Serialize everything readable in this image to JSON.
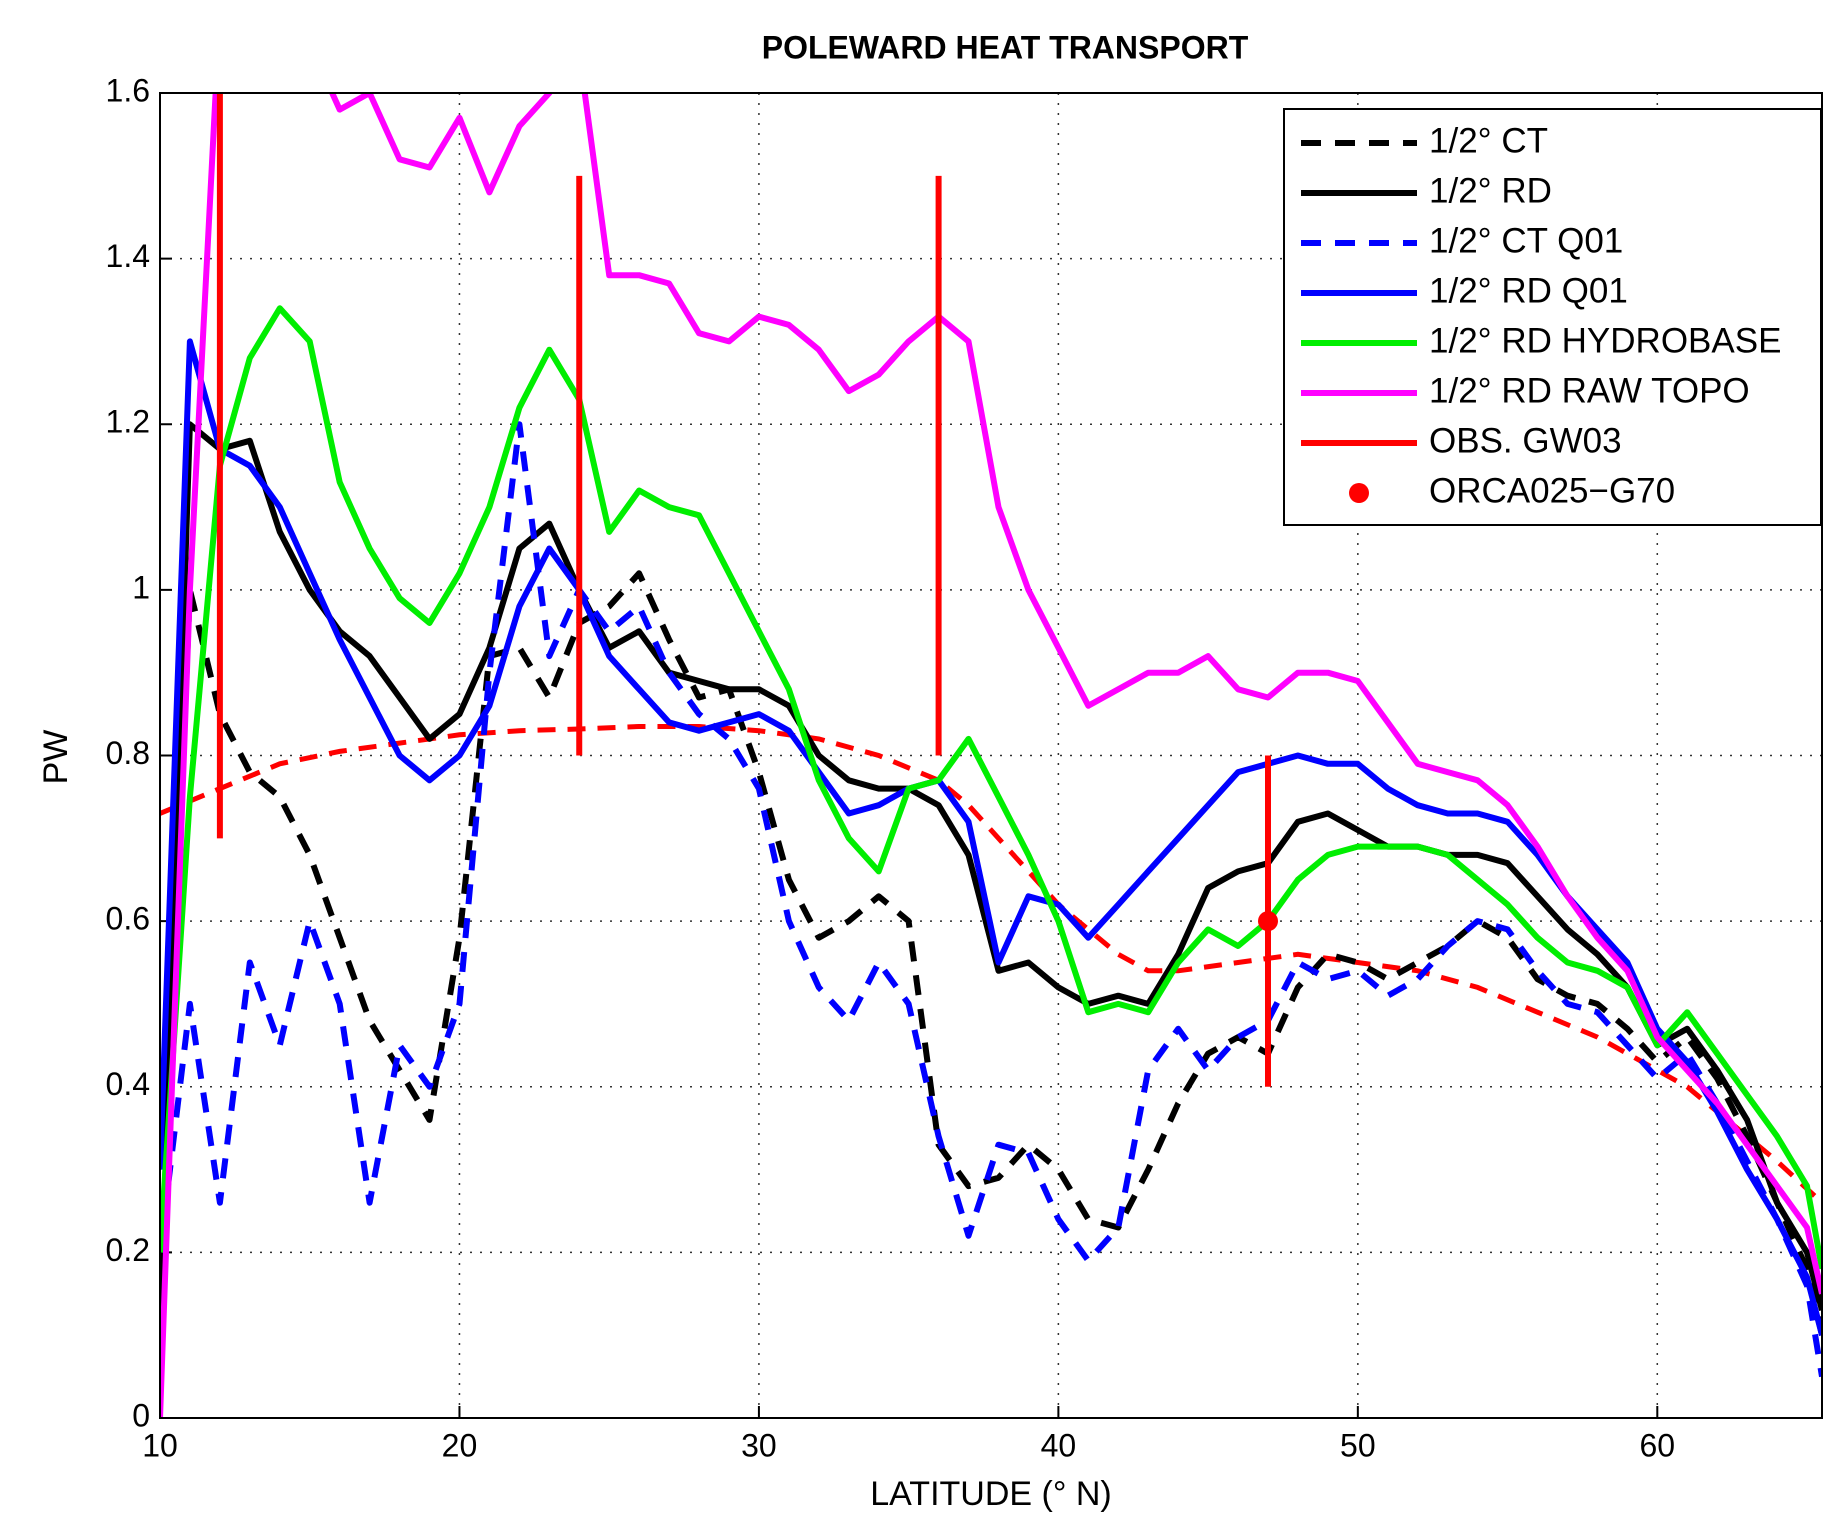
{
  "chart_data": {
    "type": "line",
    "title": "POLEWARD HEAT TRANSPORT",
    "xlabel": "LATITUDE  (° N)",
    "ylabel": "PW",
    "xlim": [
      10,
      65.5
    ],
    "ylim": [
      0,
      1.6
    ],
    "xticks": [
      10,
      20,
      30,
      40,
      50,
      60
    ],
    "yticks": [
      0,
      0.2,
      0.4,
      0.6,
      0.8,
      1,
      1.2,
      1.4,
      1.6
    ],
    "grid": true,
    "legend": "upper right",
    "x": [
      10,
      11,
      12,
      13,
      14,
      15,
      16,
      17,
      18,
      19,
      20,
      21,
      22,
      23,
      24,
      25,
      26,
      27,
      28,
      29,
      30,
      31,
      32,
      33,
      34,
      35,
      36,
      37,
      38,
      39,
      40,
      41,
      42,
      43,
      44,
      45,
      46,
      47,
      48,
      49,
      50,
      51,
      52,
      53,
      54,
      55,
      56,
      57,
      58,
      59,
      60,
      61,
      62,
      63,
      64,
      65,
      65.5
    ],
    "series": [
      {
        "name": "1/2° CT",
        "color": "#000000",
        "dashed": true,
        "values": [
          0.1,
          1.0,
          0.85,
          0.78,
          0.75,
          0.68,
          0.58,
          0.48,
          0.42,
          0.36,
          0.58,
          0.92,
          0.93,
          0.87,
          0.96,
          0.98,
          1.02,
          0.94,
          0.87,
          0.88,
          0.78,
          0.65,
          0.58,
          0.6,
          0.63,
          0.6,
          0.33,
          0.28,
          0.29,
          0.33,
          0.3,
          0.24,
          0.23,
          0.3,
          0.38,
          0.44,
          0.46,
          0.44,
          0.52,
          0.56,
          0.55,
          0.53,
          0.55,
          0.57,
          0.6,
          0.58,
          0.53,
          0.51,
          0.5,
          0.47,
          0.43,
          0.46,
          0.41,
          0.34,
          0.26,
          0.18,
          0.1
        ]
      },
      {
        "name": "1/2° RD",
        "color": "#000000",
        "dashed": false,
        "values": [
          0.1,
          1.2,
          1.17,
          1.18,
          1.07,
          1.0,
          0.95,
          0.92,
          0.87,
          0.82,
          0.85,
          0.93,
          1.05,
          1.08,
          1.0,
          0.93,
          0.95,
          0.9,
          0.89,
          0.88,
          0.88,
          0.86,
          0.8,
          0.77,
          0.76,
          0.76,
          0.74,
          0.68,
          0.54,
          0.55,
          0.52,
          0.5,
          0.51,
          0.5,
          0.56,
          0.64,
          0.66,
          0.67,
          0.72,
          0.73,
          0.71,
          0.69,
          0.69,
          0.68,
          0.68,
          0.67,
          0.63,
          0.59,
          0.56,
          0.52,
          0.45,
          0.47,
          0.42,
          0.36,
          0.26,
          0.2,
          0.13
        ]
      },
      {
        "name": "1/2° CT Q01",
        "color": "#0000ff",
        "dashed": true,
        "values": [
          0.2,
          0.5,
          0.26,
          0.55,
          0.45,
          0.6,
          0.5,
          0.26,
          0.45,
          0.4,
          0.5,
          0.9,
          1.2,
          0.92,
          1.0,
          0.95,
          0.98,
          0.9,
          0.85,
          0.82,
          0.76,
          0.6,
          0.52,
          0.48,
          0.55,
          0.5,
          0.34,
          0.22,
          0.33,
          0.32,
          0.24,
          0.19,
          0.23,
          0.42,
          0.47,
          0.42,
          0.46,
          0.48,
          0.55,
          0.53,
          0.54,
          0.51,
          0.53,
          0.57,
          0.6,
          0.59,
          0.54,
          0.5,
          0.49,
          0.45,
          0.41,
          0.44,
          0.38,
          0.31,
          0.24,
          0.16,
          0.05
        ]
      },
      {
        "name": "1/2° RD Q01",
        "color": "#0000ff",
        "dashed": false,
        "values": [
          0.3,
          1.3,
          1.17,
          1.15,
          1.1,
          1.02,
          0.94,
          0.87,
          0.8,
          0.77,
          0.8,
          0.86,
          0.98,
          1.05,
          1.0,
          0.92,
          0.88,
          0.84,
          0.83,
          0.84,
          0.85,
          0.83,
          0.78,
          0.73,
          0.74,
          0.76,
          0.77,
          0.72,
          0.55,
          0.63,
          0.62,
          0.58,
          0.62,
          0.66,
          0.7,
          0.74,
          0.78,
          0.79,
          0.8,
          0.79,
          0.79,
          0.76,
          0.74,
          0.73,
          0.73,
          0.72,
          0.68,
          0.63,
          0.59,
          0.55,
          0.47,
          0.43,
          0.37,
          0.3,
          0.24,
          0.17,
          0.1
        ]
      },
      {
        "name": "1/2° RD HYDROBASE",
        "color": "#00ee00",
        "dashed": false,
        "values": [
          0.2,
          0.75,
          1.15,
          1.28,
          1.34,
          1.3,
          1.13,
          1.05,
          0.99,
          0.96,
          1.02,
          1.1,
          1.22,
          1.29,
          1.23,
          1.07,
          1.12,
          1.1,
          1.09,
          1.02,
          0.95,
          0.88,
          0.77,
          0.7,
          0.66,
          0.76,
          0.77,
          0.82,
          0.75,
          0.68,
          0.6,
          0.49,
          0.5,
          0.49,
          0.55,
          0.59,
          0.57,
          0.6,
          0.65,
          0.68,
          0.69,
          0.69,
          0.69,
          0.68,
          0.65,
          0.62,
          0.58,
          0.55,
          0.54,
          0.52,
          0.45,
          0.49,
          0.44,
          0.39,
          0.34,
          0.28,
          0.18
        ]
      },
      {
        "name": "1/2° RD RAW TOPO",
        "color": "#ff00ff",
        "dashed": false,
        "values": [
          0.0,
          1.0,
          1.7,
          1.62,
          1.65,
          1.66,
          1.58,
          1.6,
          1.52,
          1.51,
          1.57,
          1.48,
          1.56,
          1.6,
          1.65,
          1.38,
          1.38,
          1.37,
          1.31,
          1.3,
          1.33,
          1.32,
          1.29,
          1.24,
          1.26,
          1.3,
          1.33,
          1.3,
          1.1,
          1.0,
          0.93,
          0.86,
          0.88,
          0.9,
          0.9,
          0.92,
          0.88,
          0.87,
          0.9,
          0.9,
          0.89,
          0.84,
          0.79,
          0.78,
          0.77,
          0.74,
          0.69,
          0.63,
          0.58,
          0.54,
          0.46,
          0.42,
          0.38,
          0.33,
          0.28,
          0.23,
          0.15
        ]
      }
    ],
    "reference_curve": {
      "color": "#ff0000",
      "x": [
        10,
        12,
        14,
        16,
        18,
        20,
        22,
        24,
        26,
        28,
        30,
        32,
        34,
        36,
        37,
        38,
        40,
        42,
        43,
        44,
        46,
        48,
        50,
        52,
        54,
        56,
        58,
        60,
        61,
        62,
        64,
        65.5
      ],
      "values": [
        0.73,
        0.76,
        0.79,
        0.805,
        0.815,
        0.825,
        0.83,
        0.832,
        0.835,
        0.835,
        0.83,
        0.82,
        0.8,
        0.77,
        0.74,
        0.7,
        0.62,
        0.56,
        0.54,
        0.54,
        0.55,
        0.56,
        0.55,
        0.54,
        0.52,
        0.49,
        0.46,
        0.42,
        0.4,
        0.37,
        0.31,
        0.26
      ]
    },
    "observations": {
      "name": "OBS. GW03",
      "color": "#ff0000",
      "x": [
        12,
        24,
        36,
        47
      ],
      "low": [
        0.7,
        0.8,
        0.8,
        0.4
      ],
      "high": [
        1.7,
        1.5,
        1.5,
        0.8
      ]
    },
    "points": {
      "name": "ORCA025−G70",
      "color": "#ff0000",
      "x": [
        47
      ],
      "values": [
        0.6
      ]
    }
  }
}
